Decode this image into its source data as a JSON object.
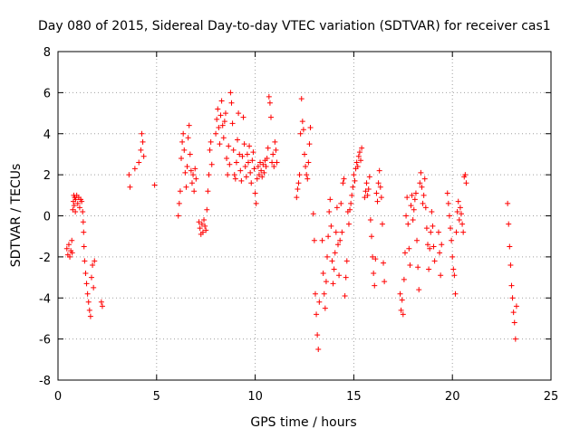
{
  "chart_data": {
    "type": "scatter",
    "title": "Day 080 of 2015, Sidereal Day-to-day VTEC variation (SDTVAR) for receiver cas1",
    "xlabel": "GPS time / hours",
    "ylabel": "SDTVAR / TECUs",
    "xlim": [
      0,
      25
    ],
    "ylim": [
      -8,
      8
    ],
    "xticks": [
      0,
      5,
      10,
      15,
      20,
      25
    ],
    "yticks": [
      -8,
      -6,
      -4,
      -2,
      0,
      2,
      4,
      6,
      8
    ],
    "xtick_labels": [
      "0",
      "5",
      "10",
      "15",
      "20",
      "25"
    ],
    "ytick_labels": [
      "-8",
      "-6",
      "-4",
      "-2",
      "0",
      "2",
      "4",
      "6",
      "8"
    ],
    "grid": true,
    "legend": "none",
    "marker": "+",
    "series": [
      {
        "name": "SDTVAR",
        "color": "#ff0000",
        "points": [
          [
            0.45,
            -1.6
          ],
          [
            0.5,
            -1.9
          ],
          [
            0.55,
            -1.4
          ],
          [
            0.6,
            -2.0
          ],
          [
            0.65,
            -1.7
          ],
          [
            0.7,
            -1.2
          ],
          [
            0.72,
            -1.8
          ],
          [
            0.75,
            0.3
          ],
          [
            0.78,
            0.7
          ],
          [
            0.8,
            1.0
          ],
          [
            0.82,
            0.5
          ],
          [
            0.85,
            0.9
          ],
          [
            0.88,
            0.2
          ],
          [
            0.9,
            0.8
          ],
          [
            0.95,
            1.0
          ],
          [
            1.0,
            0.6
          ],
          [
            1.05,
            0.9
          ],
          [
            1.1,
            0.4
          ],
          [
            1.15,
            0.8
          ],
          [
            1.2,
            0.7
          ],
          [
            1.25,
            0.2
          ],
          [
            1.28,
            -0.3
          ],
          [
            1.3,
            -0.8
          ],
          [
            1.32,
            -1.5
          ],
          [
            1.35,
            -2.2
          ],
          [
            1.4,
            -2.8
          ],
          [
            1.45,
            -3.3
          ],
          [
            1.5,
            -3.8
          ],
          [
            1.55,
            -4.2
          ],
          [
            1.6,
            -4.6
          ],
          [
            1.65,
            -4.9
          ],
          [
            1.7,
            -3.0
          ],
          [
            1.75,
            -2.4
          ],
          [
            1.8,
            -3.5
          ],
          [
            1.85,
            -2.2
          ],
          [
            2.2,
            -4.2
          ],
          [
            2.25,
            -4.4
          ],
          [
            3.6,
            2.0
          ],
          [
            3.65,
            1.4
          ],
          [
            3.9,
            2.3
          ],
          [
            4.1,
            2.6
          ],
          [
            4.2,
            3.2
          ],
          [
            4.25,
            4.0
          ],
          [
            4.3,
            3.6
          ],
          [
            4.35,
            2.9
          ],
          [
            4.9,
            1.5
          ],
          [
            6.1,
            0.0
          ],
          [
            6.15,
            0.6
          ],
          [
            6.2,
            1.2
          ],
          [
            6.25,
            2.8
          ],
          [
            6.3,
            3.6
          ],
          [
            6.35,
            4.0
          ],
          [
            6.4,
            3.2
          ],
          [
            6.45,
            2.1
          ],
          [
            6.5,
            1.4
          ],
          [
            6.55,
            2.4
          ],
          [
            6.6,
            3.8
          ],
          [
            6.65,
            4.4
          ],
          [
            6.7,
            3.0
          ],
          [
            6.75,
            2.2
          ],
          [
            6.8,
            1.6
          ],
          [
            6.85,
            2.0
          ],
          [
            6.9,
            1.2
          ],
          [
            6.95,
            2.3
          ],
          [
            7.0,
            1.8
          ],
          [
            7.15,
            -0.3
          ],
          [
            7.2,
            -0.6
          ],
          [
            7.25,
            -0.9
          ],
          [
            7.3,
            -0.4
          ],
          [
            7.35,
            -0.8
          ],
          [
            7.4,
            -0.2
          ],
          [
            7.45,
            -0.5
          ],
          [
            7.5,
            -0.7
          ],
          [
            7.55,
            0.3
          ],
          [
            7.6,
            1.2
          ],
          [
            7.65,
            2.0
          ],
          [
            7.7,
            3.2
          ],
          [
            7.75,
            3.6
          ],
          [
            7.8,
            2.5
          ],
          [
            8.0,
            4.0
          ],
          [
            8.05,
            4.7
          ],
          [
            8.1,
            5.2
          ],
          [
            8.15,
            4.3
          ],
          [
            8.2,
            3.5
          ],
          [
            8.25,
            4.9
          ],
          [
            8.3,
            5.6
          ],
          [
            8.35,
            4.4
          ],
          [
            8.4,
            3.8
          ],
          [
            8.45,
            4.6
          ],
          [
            8.5,
            5.0
          ],
          [
            8.55,
            2.8
          ],
          [
            8.6,
            2.0
          ],
          [
            8.65,
            3.4
          ],
          [
            8.7,
            2.5
          ],
          [
            8.75,
            6.0
          ],
          [
            8.8,
            5.5
          ],
          [
            8.85,
            4.5
          ],
          [
            8.9,
            3.2
          ],
          [
            8.95,
            2.0
          ],
          [
            9.0,
            1.8
          ],
          [
            9.05,
            2.6
          ],
          [
            9.1,
            3.7
          ],
          [
            9.15,
            5.0
          ],
          [
            9.2,
            3.0
          ],
          [
            9.25,
            2.2
          ],
          [
            9.3,
            1.7
          ],
          [
            9.35,
            2.9
          ],
          [
            9.4,
            4.8
          ],
          [
            9.45,
            3.5
          ],
          [
            9.5,
            2.4
          ],
          [
            9.55,
            1.9
          ],
          [
            9.6,
            3.0
          ],
          [
            9.65,
            2.6
          ],
          [
            9.7,
            3.4
          ],
          [
            9.75,
            2.1
          ],
          [
            9.8,
            1.6
          ],
          [
            9.85,
            2.7
          ],
          [
            9.9,
            3.1
          ],
          [
            9.95,
            2.3
          ],
          [
            10.0,
            1.1
          ],
          [
            10.05,
            0.6
          ],
          [
            10.1,
            1.8
          ],
          [
            10.15,
            2.4
          ],
          [
            10.2,
            2.0
          ],
          [
            10.25,
            2.6
          ],
          [
            10.3,
            2.2
          ],
          [
            10.35,
            1.9
          ],
          [
            10.4,
            2.5
          ],
          [
            10.45,
            2.1
          ],
          [
            10.5,
            2.7
          ],
          [
            10.55,
            2.4
          ],
          [
            10.6,
            2.8
          ],
          [
            10.65,
            3.3
          ],
          [
            10.7,
            5.8
          ],
          [
            10.75,
            5.5
          ],
          [
            10.8,
            4.8
          ],
          [
            10.85,
            2.6
          ],
          [
            10.9,
            3.0
          ],
          [
            10.95,
            2.4
          ],
          [
            11.0,
            3.6
          ],
          [
            11.05,
            3.2
          ],
          [
            11.1,
            2.6
          ],
          [
            12.1,
            0.9
          ],
          [
            12.15,
            1.3
          ],
          [
            12.2,
            1.6
          ],
          [
            12.25,
            2.0
          ],
          [
            12.3,
            4.0
          ],
          [
            12.35,
            5.7
          ],
          [
            12.4,
            4.6
          ],
          [
            12.45,
            4.2
          ],
          [
            12.5,
            3.0
          ],
          [
            12.55,
            2.4
          ],
          [
            12.6,
            2.0
          ],
          [
            12.65,
            1.8
          ],
          [
            12.7,
            2.6
          ],
          [
            12.75,
            3.5
          ],
          [
            12.8,
            4.3
          ],
          [
            12.95,
            0.1
          ],
          [
            13.0,
            -1.2
          ],
          [
            13.05,
            -3.8
          ],
          [
            13.1,
            -4.8
          ],
          [
            13.15,
            -5.8
          ],
          [
            13.2,
            -6.5
          ],
          [
            13.25,
            -4.2
          ],
          [
            13.4,
            -1.2
          ],
          [
            13.45,
            -2.8
          ],
          [
            13.5,
            -3.8
          ],
          [
            13.55,
            -4.5
          ],
          [
            13.6,
            -3.2
          ],
          [
            13.65,
            -2.0
          ],
          [
            13.7,
            -1.0
          ],
          [
            13.75,
            0.2
          ],
          [
            13.8,
            0.8
          ],
          [
            13.85,
            -0.5
          ],
          [
            13.9,
            -2.2
          ],
          [
            13.95,
            -3.3
          ],
          [
            14.0,
            -2.6
          ],
          [
            14.05,
            -1.8
          ],
          [
            14.1,
            -0.8
          ],
          [
            14.15,
            0.4
          ],
          [
            14.2,
            -1.4
          ],
          [
            14.25,
            -2.9
          ],
          [
            14.3,
            -1.2
          ],
          [
            14.35,
            0.6
          ],
          [
            14.4,
            -0.8
          ],
          [
            14.45,
            1.6
          ],
          [
            14.5,
            1.8
          ],
          [
            14.55,
            -3.9
          ],
          [
            14.6,
            -3.0
          ],
          [
            14.65,
            -2.2
          ],
          [
            14.7,
            0.2
          ],
          [
            14.75,
            -0.4
          ],
          [
            14.8,
            0.3
          ],
          [
            14.85,
            0.6
          ],
          [
            14.9,
            1.0
          ],
          [
            14.95,
            1.4
          ],
          [
            15.0,
            2.0
          ],
          [
            15.05,
            1.7
          ],
          [
            15.1,
            2.3
          ],
          [
            15.15,
            2.6
          ],
          [
            15.2,
            2.4
          ],
          [
            15.25,
            2.9
          ],
          [
            15.3,
            3.1
          ],
          [
            15.35,
            2.7
          ],
          [
            15.4,
            3.3
          ],
          [
            15.55,
            0.9
          ],
          [
            15.6,
            1.2
          ],
          [
            15.65,
            1.6
          ],
          [
            15.7,
            1.0
          ],
          [
            15.75,
            1.3
          ],
          [
            15.8,
            1.9
          ],
          [
            15.85,
            -0.2
          ],
          [
            15.9,
            -1.0
          ],
          [
            15.95,
            -2.0
          ],
          [
            16.0,
            -2.8
          ],
          [
            16.05,
            -3.4
          ],
          [
            16.1,
            -2.1
          ],
          [
            16.15,
            1.1
          ],
          [
            16.2,
            0.7
          ],
          [
            16.25,
            1.6
          ],
          [
            16.3,
            2.2
          ],
          [
            16.35,
            1.4
          ],
          [
            16.4,
            0.9
          ],
          [
            16.45,
            -0.4
          ],
          [
            16.5,
            -2.3
          ],
          [
            16.55,
            -3.2
          ],
          [
            17.35,
            -3.8
          ],
          [
            17.4,
            -4.6
          ],
          [
            17.45,
            -4.1
          ],
          [
            17.5,
            -4.8
          ],
          [
            17.55,
            -3.1
          ],
          [
            17.6,
            -1.8
          ],
          [
            17.65,
            0.0
          ],
          [
            17.7,
            0.9
          ],
          [
            17.75,
            -0.4
          ],
          [
            17.8,
            -1.6
          ],
          [
            17.85,
            -2.4
          ],
          [
            17.9,
            0.5
          ],
          [
            17.95,
            1.0
          ],
          [
            18.0,
            -0.2
          ],
          [
            18.05,
            0.3
          ],
          [
            18.1,
            0.8
          ],
          [
            18.15,
            1.1
          ],
          [
            18.2,
            -1.2
          ],
          [
            18.25,
            -2.5
          ],
          [
            18.3,
            -3.6
          ],
          [
            18.35,
            1.6
          ],
          [
            18.4,
            2.1
          ],
          [
            18.45,
            1.4
          ],
          [
            18.5,
            0.6
          ],
          [
            18.55,
            1.0
          ],
          [
            18.6,
            1.8
          ],
          [
            18.65,
            0.4
          ],
          [
            18.7,
            -0.6
          ],
          [
            18.75,
            -1.4
          ],
          [
            18.8,
            -2.6
          ],
          [
            18.85,
            -1.6
          ],
          [
            18.9,
            -0.8
          ],
          [
            18.95,
            0.2
          ],
          [
            19.0,
            -0.5
          ],
          [
            19.05,
            -1.5
          ],
          [
            19.1,
            -2.2
          ],
          [
            19.3,
            -0.8
          ],
          [
            19.35,
            -1.8
          ],
          [
            19.4,
            -2.9
          ],
          [
            19.45,
            -1.4
          ],
          [
            19.75,
            1.1
          ],
          [
            19.8,
            0.6
          ],
          [
            19.85,
            0.0
          ],
          [
            19.9,
            -0.6
          ],
          [
            19.95,
            -1.2
          ],
          [
            20.0,
            -2.0
          ],
          [
            20.05,
            -2.6
          ],
          [
            20.1,
            -2.9
          ],
          [
            20.15,
            -3.8
          ],
          [
            20.2,
            -0.8
          ],
          [
            20.25,
            0.2
          ],
          [
            20.3,
            0.7
          ],
          [
            20.35,
            -0.2
          ],
          [
            20.4,
            0.4
          ],
          [
            20.45,
            0.1
          ],
          [
            20.5,
            -0.4
          ],
          [
            20.55,
            -0.8
          ],
          [
            20.6,
            1.9
          ],
          [
            20.65,
            2.0
          ],
          [
            20.7,
            1.6
          ],
          [
            22.8,
            0.6
          ],
          [
            22.85,
            -0.4
          ],
          [
            22.9,
            -1.5
          ],
          [
            22.95,
            -2.4
          ],
          [
            23.0,
            -3.4
          ],
          [
            23.05,
            -4.0
          ],
          [
            23.1,
            -4.7
          ],
          [
            23.15,
            -5.2
          ],
          [
            23.2,
            -6.0
          ],
          [
            23.25,
            -4.4
          ]
        ]
      }
    ]
  }
}
